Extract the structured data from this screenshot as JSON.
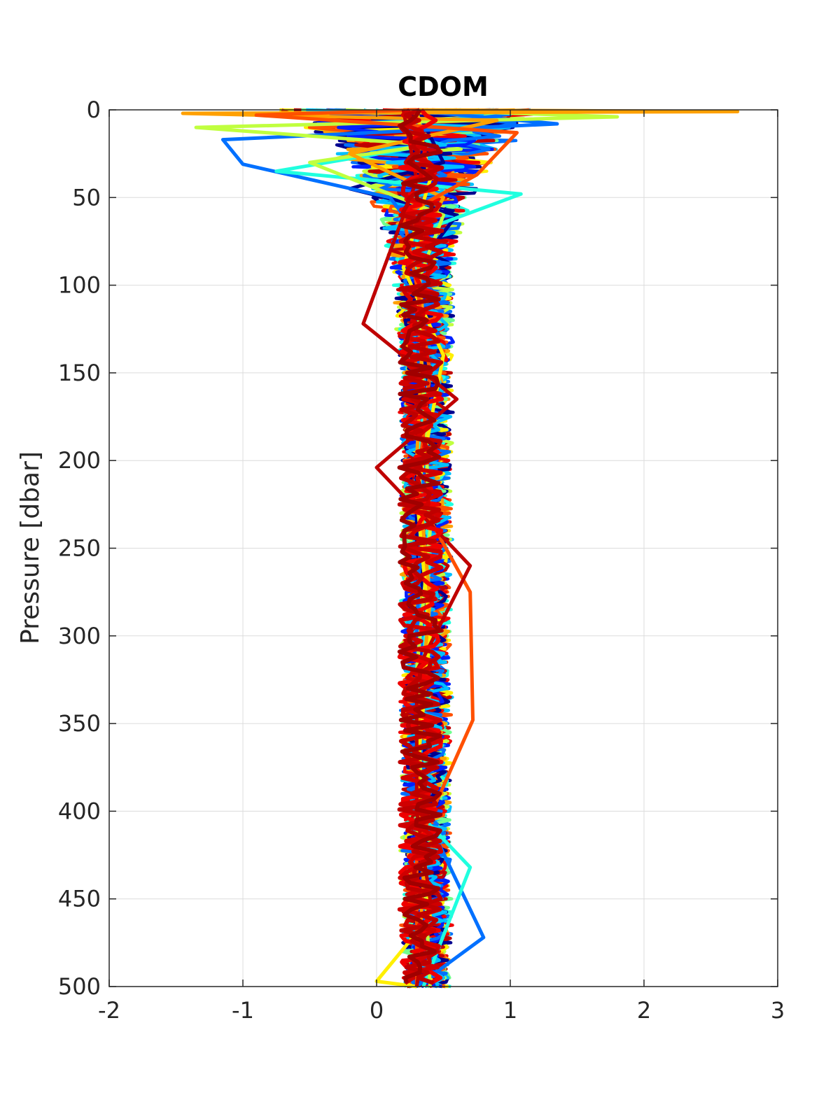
{
  "chart_data": {
    "type": "line",
    "title": "CDOM",
    "xlabel": "",
    "ylabel": "Pressure [dbar]",
    "xlim": [
      -2,
      3
    ],
    "ylim": [
      0,
      500
    ],
    "y_reversed": true,
    "grid": true,
    "legend": "none",
    "xticks": [
      -2,
      -1,
      0,
      1,
      2,
      3
    ],
    "xtick_labels": [
      "-2",
      "-1",
      "0",
      "1",
      "2",
      "3"
    ],
    "yticks": [
      0,
      50,
      100,
      150,
      200,
      250,
      300,
      350,
      400,
      450,
      500
    ],
    "ytick_labels": [
      "0",
      "50",
      "100",
      "150",
      "200",
      "250",
      "300",
      "350",
      "400",
      "450",
      "500"
    ],
    "colors": [
      "#00008f",
      "#0020ff",
      "#0070ff",
      "#00c0ff",
      "#20ffdf",
      "#70ff8f",
      "#c0ff3f",
      "#ffef00",
      "#ffa000",
      "#ff5000",
      "#ef0000",
      "#bf0000"
    ],
    "series": [
      {
        "color": "#00008f",
        "pressure": [
          0,
          30,
          45,
          60,
          80,
          120,
          160,
          200,
          250,
          300,
          350,
          400,
          450,
          500
        ],
        "value": [
          0.3,
          0.5,
          -0.2,
          0.6,
          0.4,
          0.3,
          0.4,
          0.3,
          0.3,
          0.4,
          0.3,
          0.35,
          0.3,
          0.3
        ]
      },
      {
        "color": "#0070ff",
        "pressure": [
          0,
          8,
          17,
          31,
          50,
          80,
          120,
          200,
          300,
          400,
          472,
          500
        ],
        "value": [
          0.2,
          1.35,
          -1.15,
          -1.0,
          0.1,
          0.4,
          0.3,
          0.35,
          0.3,
          0.35,
          0.8,
          0.3
        ]
      },
      {
        "color": "#20ffdf",
        "pressure": [
          0,
          20,
          35,
          48,
          70,
          100,
          150,
          200,
          250,
          320,
          400,
          432,
          500
        ],
        "value": [
          0.2,
          0.4,
          -0.75,
          1.08,
          0.3,
          0.3,
          0.4,
          0.3,
          0.4,
          0.35,
          0.3,
          0.7,
          0.35
        ]
      },
      {
        "color": "#c0ff3f",
        "pressure": [
          0,
          4,
          10,
          20,
          30,
          60,
          100,
          160,
          240,
          320,
          420,
          500
        ],
        "value": [
          0.3,
          1.8,
          -1.35,
          0.4,
          -0.5,
          0.5,
          0.3,
          0.35,
          0.4,
          0.3,
          0.35,
          0.4
        ]
      },
      {
        "color": "#ffef00",
        "pressure": [
          0,
          40,
          90,
          140,
          220,
          300,
          380,
          460,
          497,
          500
        ],
        "value": [
          0.3,
          0.4,
          0.2,
          0.5,
          0.3,
          0.4,
          0.3,
          0.4,
          0.0,
          0.3
        ]
      },
      {
        "color": "#ffa000",
        "pressure": [
          0,
          1,
          2,
          6,
          25,
          50,
          80,
          120,
          200,
          280,
          360,
          440,
          500
        ],
        "value": [
          0.2,
          2.7,
          -1.45,
          0.9,
          -0.2,
          0.5,
          0.3,
          0.35,
          0.3,
          0.4,
          0.3,
          0.35,
          0.3
        ]
      },
      {
        "color": "#ff5000",
        "pressure": [
          0,
          3,
          13,
          37,
          60,
          100,
          150,
          220,
          275,
          348,
          420,
          500
        ],
        "value": [
          0.3,
          -0.9,
          1.05,
          0.75,
          0.2,
          0.3,
          0.4,
          0.3,
          0.7,
          0.72,
          0.3,
          0.3
        ]
      },
      {
        "color": "#bf0000",
        "pressure": [
          0,
          40,
          122,
          165,
          204,
          260,
          320,
          400,
          450,
          500
        ],
        "value": [
          0.2,
          0.3,
          -0.1,
          0.6,
          0.0,
          0.7,
          0.3,
          0.3,
          0.4,
          0.3
        ]
      }
    ]
  }
}
